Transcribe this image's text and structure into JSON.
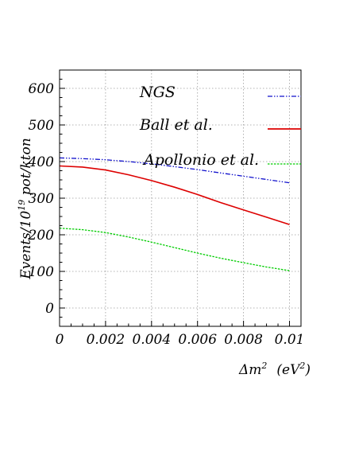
{
  "chart_data": {
    "type": "line",
    "ylabel_main": "Events/10",
    "ylabel_sup": "19",
    "ylabel_rest": " pot/kton",
    "xlabel_main": "Δm",
    "xlabel_sup": "2",
    "xlabel_unit": "(eV",
    "xlabel_unit_sup": "2",
    "xlabel_unit_close": ")",
    "xlim": [
      0,
      0.0105
    ],
    "ylim": [
      -50,
      650
    ],
    "x_ticks": [
      0,
      0.002,
      0.004,
      0.006,
      0.008,
      0.01
    ],
    "x_tick_labels": [
      "0",
      "0.002",
      "0.004",
      "0.006",
      "0.008",
      "0.01"
    ],
    "y_ticks": [
      0,
      100,
      200,
      300,
      400,
      500,
      600
    ],
    "y_tick_labels": [
      "0",
      "100",
      "200",
      "300",
      "400",
      "500",
      "600"
    ],
    "grid": true,
    "legend_position": "upper-right",
    "series": [
      {
        "name": "NGS",
        "color": "#1010cc",
        "dash": "6 2 1.5 2 1.5 2",
        "x": [
          0,
          0.001,
          0.002,
          0.003,
          0.004,
          0.005,
          0.006,
          0.007,
          0.008,
          0.009,
          0.01
        ],
        "y": [
          410,
          408,
          405,
          400,
          394,
          386,
          378,
          369,
          360,
          351,
          342
        ]
      },
      {
        "name": "Ball et al.",
        "color": "#dd0000",
        "dash": "",
        "x": [
          0,
          0.001,
          0.002,
          0.003,
          0.004,
          0.005,
          0.006,
          0.007,
          0.008,
          0.009,
          0.01
        ],
        "y": [
          388,
          385,
          377,
          364,
          348,
          330,
          310,
          288,
          268,
          248,
          228
        ]
      },
      {
        "name": "Apollonio et al.",
        "color": "#00cc00",
        "dash": "2.5 1.5",
        "x": [
          0,
          0.001,
          0.002,
          0.003,
          0.004,
          0.005,
          0.006,
          0.007,
          0.008,
          0.009,
          0.01
        ],
        "y": [
          218,
          214,
          206,
          194,
          180,
          165,
          150,
          136,
          124,
          112,
          102
        ]
      }
    ]
  }
}
